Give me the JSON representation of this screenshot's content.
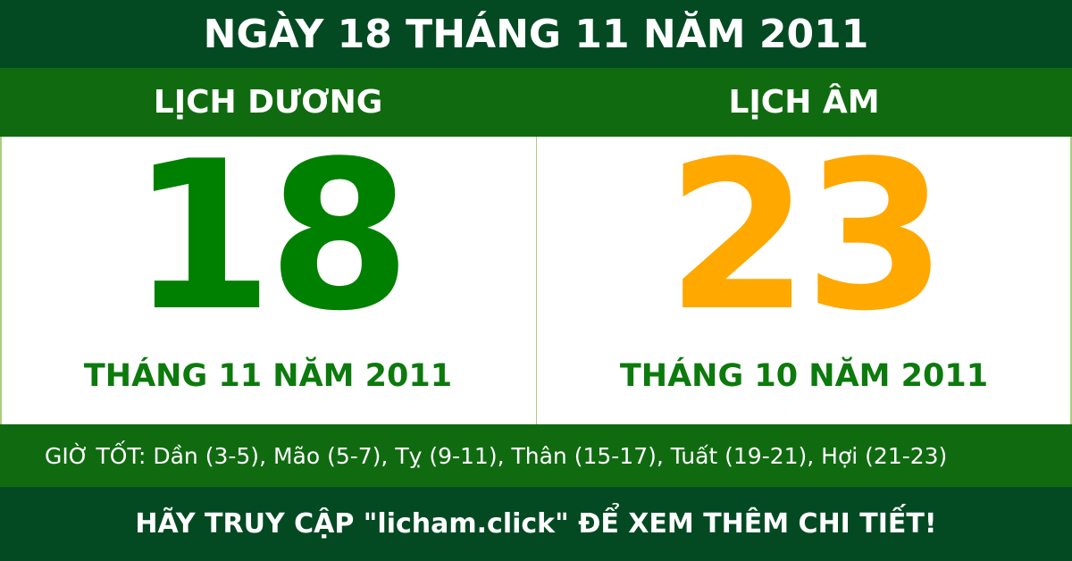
{
  "title": "NGÀY 18 THÁNG 11 NĂM 2011",
  "solar": {
    "heading": "LỊCH DƯƠNG",
    "day": "18",
    "month_year": "THÁNG 11 NĂM 2011"
  },
  "lunar": {
    "heading": "LỊCH ÂM",
    "day": "23",
    "month_year": "THÁNG 10 NĂM 2011"
  },
  "good_hours": "GIỜ TỐT: Dần (3-5), Mão (5-7), Tỵ (9-11), Thân (15-17), Tuất (19-21), Hợi (21-23)",
  "footer": "HÃY TRUY CẬP \"licham.click\" ĐỂ XEM THÊM CHI TIẾT!",
  "colors": {
    "dark_green": "#034a22",
    "green": "#106b10",
    "solar_day": "#008000",
    "lunar_day": "#ffa800"
  }
}
